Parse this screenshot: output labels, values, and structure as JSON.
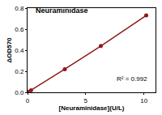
{
  "chart_data": {
    "type": "line",
    "title": "Neuraminidase",
    "x_label": "[Neuraminidase](U/L)",
    "y_label": "ΔOD570",
    "annotations": [
      "R² = 0.992"
    ],
    "x": [
      0,
      0.3,
      3.2,
      6.3,
      10.2
    ],
    "values": [
      0.005,
      0.02,
      0.22,
      0.44,
      0.73
    ],
    "color": "#8b1a1a",
    "marker": "circle",
    "line_style": "solid",
    "xlim": [
      0,
      11
    ],
    "xticks": [
      0,
      5,
      10
    ],
    "ylim": [
      0,
      0.8
    ],
    "yticks": [
      {
        "value": 0,
        "label": "0.0"
      },
      {
        "value": 0.2,
        "label": "0.2"
      },
      {
        "value": 0.4,
        "label": "0.4"
      },
      {
        "value": 0.6,
        "label": "0.6"
      },
      {
        "value": 0.8,
        "label": "0.8"
      }
    ],
    "grid": false
  }
}
